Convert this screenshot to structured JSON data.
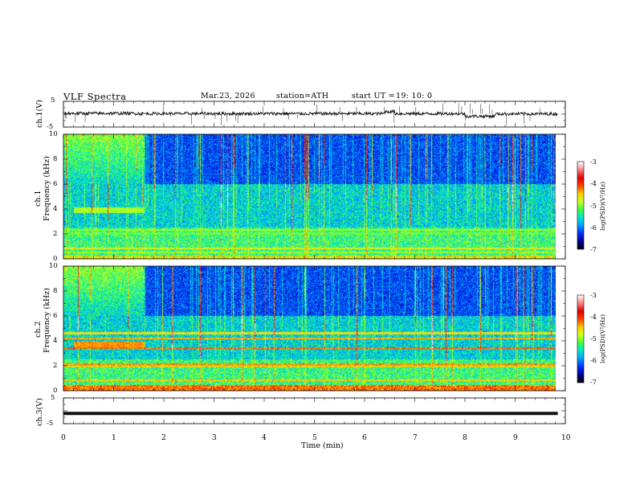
{
  "header": {
    "title": "VLF  Spectra",
    "date": "Mar.23, 2026",
    "station": "station=ATH",
    "start_label": "start  UT  =",
    "start_time": "19: 10: 0"
  },
  "colors": {
    "trace": "#111111",
    "cmap": [
      "#000000",
      "#0000a0",
      "#0030ff",
      "#00a0ff",
      "#00e8d0",
      "#40ff40",
      "#d0ff20",
      "#ffd000",
      "#ff4000",
      "#e00000",
      "#ff8080",
      "#ffffff"
    ]
  },
  "panels": {
    "ch1_wave": {
      "ylabel": "ch.1(V)",
      "y_ticks": [
        "5",
        "-5"
      ]
    },
    "ch1_spec": {
      "ylabel_top": "ch.1",
      "ylabel": "Frequency  (kHz)",
      "y_ticks": [
        "10",
        "8",
        "6",
        "4",
        "2",
        "0"
      ]
    },
    "ch2_spec": {
      "ylabel_top": "ch.2",
      "ylabel": "Frequency  (kHz)",
      "y_ticks": [
        "10",
        "8",
        "6",
        "4",
        "2",
        "0"
      ]
    },
    "ch3_wave": {
      "ylabel": "ch.3(V)",
      "y_ticks": [
        "5",
        "-5"
      ]
    }
  },
  "x_axis": {
    "label": "Time  (min)",
    "ticks": [
      "0",
      "1",
      "2",
      "3",
      "4",
      "5",
      "6",
      "7",
      "8",
      "9",
      "10"
    ]
  },
  "colorbar": {
    "label": "log(PSD)(V²/Hz)",
    "ticks": [
      "-3",
      "-4",
      "-5",
      "-6",
      "-7"
    ]
  },
  "chart_data": [
    {
      "type": "line",
      "name": "ch.1 waveform",
      "ylabel": "ch.1(V)",
      "xlim": [
        0,
        10
      ],
      "ylim": [
        -5,
        5
      ],
      "baseline_v": 0.2,
      "segments": [
        {
          "t": [
            0.0,
            1.5
          ],
          "mean": 0.3
        },
        {
          "t": [
            6.4,
            6.6
          ],
          "mean": 1.0
        },
        {
          "t": [
            8.0,
            8.6
          ],
          "mean": -0.8
        },
        {
          "t": [
            8.6,
            9.85
          ],
          "mean": 0.1
        }
      ]
    },
    {
      "type": "heatmap",
      "name": "ch.1 spectrogram",
      "xlabel": "Time (min)",
      "ylabel": "Frequency (kHz)",
      "xlim": [
        0,
        9.85
      ],
      "ylim": [
        0,
        10
      ],
      "colorbar": {
        "label": "log(PSD)(V²/Hz)",
        "range": [
          -7,
          -3
        ]
      },
      "features": [
        {
          "kind": "broadband-noise",
          "t": [
            0.0,
            1.6
          ],
          "f": [
            6.0,
            10.0
          ],
          "log_psd": -4.8
        },
        {
          "kind": "band",
          "t": [
            0.2,
            1.6
          ],
          "f": [
            3.7,
            4.1
          ],
          "log_psd": -4.9
        },
        {
          "kind": "line",
          "f": 2.3,
          "log_psd": -5.0
        },
        {
          "kind": "line",
          "f": 2.0,
          "log_psd": -5.2
        },
        {
          "kind": "line",
          "f": 0.8,
          "log_psd": -4.7
        },
        {
          "kind": "line",
          "f": 0.5,
          "log_psd": -5.0
        }
      ]
    },
    {
      "type": "heatmap",
      "name": "ch.2 spectrogram",
      "xlabel": "Time (min)",
      "ylabel": "Frequency (kHz)",
      "xlim": [
        0,
        9.85
      ],
      "ylim": [
        0,
        10
      ],
      "colorbar": {
        "label": "log(PSD)(V²/Hz)",
        "range": [
          -7,
          -3
        ]
      },
      "features": [
        {
          "kind": "broadband-noise",
          "t": [
            0.0,
            1.6
          ],
          "f": [
            6.0,
            10.0
          ],
          "log_psd": -4.8
        },
        {
          "kind": "band",
          "t": [
            0.2,
            1.6
          ],
          "f": [
            3.4,
            3.9
          ],
          "log_psd": -4.3
        },
        {
          "kind": "line",
          "f": 4.6,
          "log_psd": -4.6
        },
        {
          "kind": "line",
          "f": 4.2,
          "log_psd": -4.4
        },
        {
          "kind": "line",
          "f": 3.4,
          "log_psd": -4.2
        },
        {
          "kind": "line",
          "f": 2.1,
          "log_psd": -4.3
        },
        {
          "kind": "line",
          "f": 1.9,
          "log_psd": -4.5
        },
        {
          "kind": "line",
          "f": 0.8,
          "log_psd": -4.5
        }
      ]
    },
    {
      "type": "line",
      "name": "ch.3 waveform",
      "ylabel": "ch.3(V)",
      "xlim": [
        0,
        10
      ],
      "ylim": [
        -5,
        5
      ],
      "segments": [
        {
          "t": [
            0.0,
            9.85
          ],
          "mean": -1.0
        }
      ]
    }
  ]
}
